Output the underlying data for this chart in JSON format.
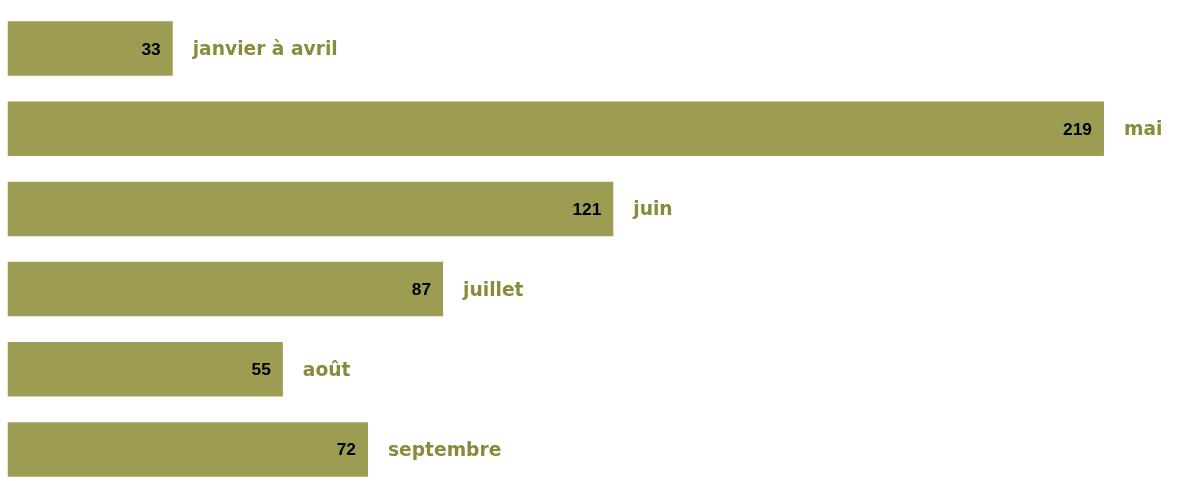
{
  "chart_data": {
    "type": "bar",
    "orientation": "horizontal",
    "categories": [
      "janvier à avril",
      "mai",
      "juin",
      "juillet",
      "août",
      "septembre"
    ],
    "values": [
      33,
      219,
      121,
      87,
      55,
      72
    ],
    "color": "#9c9c52",
    "data_labels": true,
    "grid": false
  }
}
